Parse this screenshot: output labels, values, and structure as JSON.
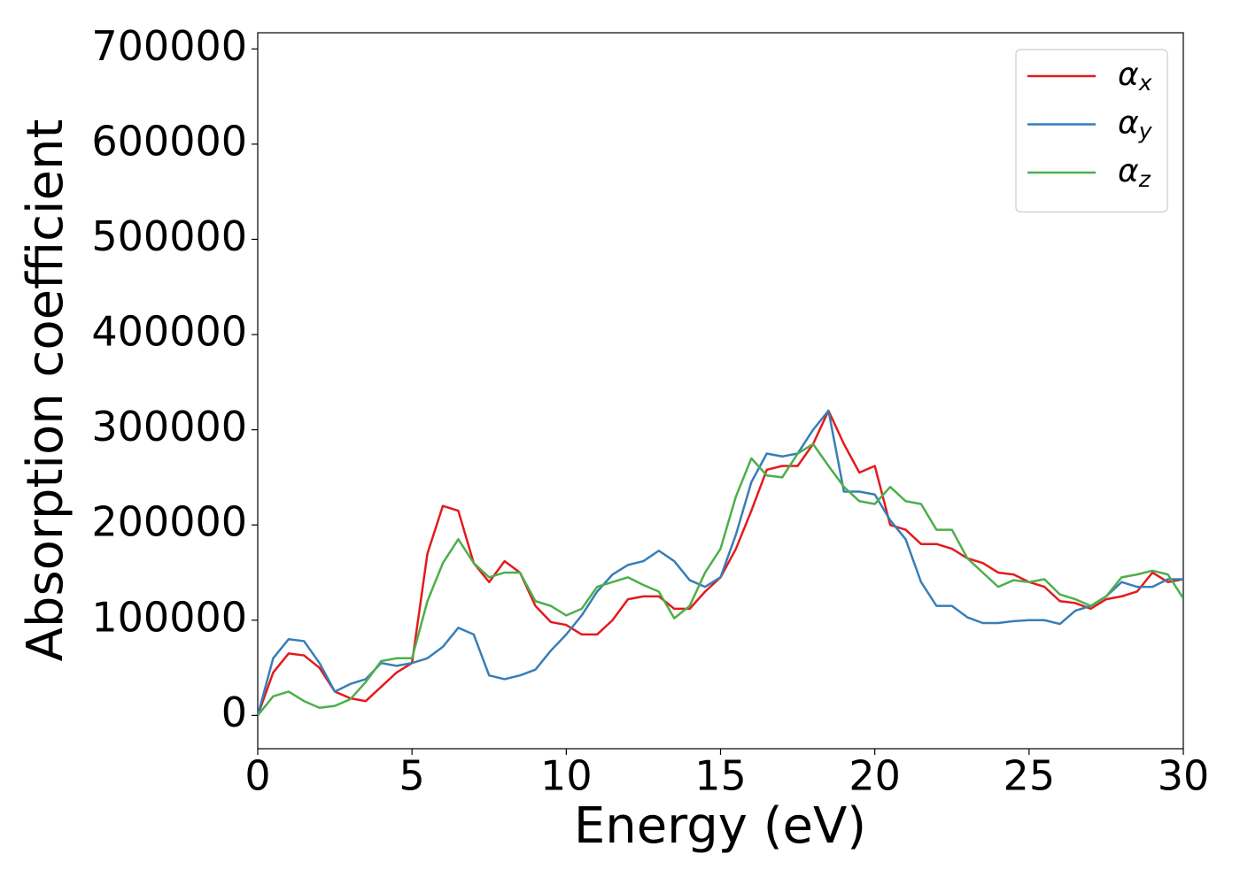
{
  "chart_data": {
    "type": "line",
    "xlabel": "Energy (eV)",
    "ylabel": "Absorption coefficient",
    "x": [
      0,
      0.5,
      1,
      1.5,
      2,
      2.5,
      3,
      3.5,
      4,
      4.5,
      5,
      5.5,
      6,
      6.5,
      7,
      7.5,
      8,
      8.5,
      9,
      9.5,
      10,
      10.5,
      11,
      11.5,
      12,
      12.5,
      13,
      13.5,
      14,
      14.5,
      15,
      15.5,
      16,
      16.5,
      17,
      17.5,
      18,
      18.5,
      19,
      19.5,
      20,
      20.5,
      21,
      21.5,
      22,
      22.5,
      23,
      23.5,
      24,
      24.5,
      25,
      25.5,
      26,
      26.5,
      27,
      27.5,
      28,
      28.5,
      29,
      29.5,
      30
    ],
    "series": [
      {
        "name": "αx",
        "color": "#e41a1c",
        "values": [
          0,
          45000,
          65000,
          63000,
          50000,
          25000,
          18000,
          15000,
          30000,
          45000,
          55000,
          170000,
          220000,
          215000,
          160000,
          140000,
          162000,
          150000,
          115000,
          98000,
          95000,
          85000,
          85000,
          100000,
          122000,
          125000,
          125000,
          112000,
          112000,
          130000,
          145000,
          175000,
          215000,
          258000,
          262000,
          262000,
          285000,
          320000,
          285000,
          255000,
          262000,
          200000,
          195000,
          180000,
          180000,
          175000,
          165000,
          160000,
          150000,
          148000,
          140000,
          135000,
          120000,
          118000,
          112000,
          122000,
          125000,
          130000,
          150000,
          140000,
          143000
        ]
      },
      {
        "name": "αy",
        "color": "#377eb8",
        "values": [
          0,
          60000,
          80000,
          78000,
          55000,
          25000,
          33000,
          38000,
          55000,
          52000,
          55000,
          60000,
          72000,
          92000,
          85000,
          42000,
          38000,
          42000,
          48000,
          68000,
          85000,
          105000,
          130000,
          148000,
          158000,
          162000,
          173000,
          162000,
          142000,
          135000,
          145000,
          190000,
          245000,
          275000,
          272000,
          275000,
          300000,
          320000,
          235000,
          235000,
          232000,
          205000,
          185000,
          140000,
          115000,
          115000,
          103000,
          97000,
          97000,
          99000,
          100000,
          100000,
          96000,
          110000,
          115000,
          125000,
          140000,
          135000,
          135000,
          143000,
          143000
        ]
      },
      {
        "name": "αz",
        "color": "#4daf4a",
        "values": [
          0,
          20000,
          25000,
          15000,
          8000,
          10000,
          17000,
          35000,
          57000,
          60000,
          60000,
          120000,
          160000,
          185000,
          160000,
          145000,
          150000,
          150000,
          120000,
          115000,
          105000,
          112000,
          135000,
          140000,
          145000,
          137000,
          130000,
          102000,
          115000,
          150000,
          175000,
          230000,
          270000,
          252000,
          250000,
          275000,
          285000,
          262000,
          240000,
          225000,
          222000,
          240000,
          225000,
          222000,
          195000,
          195000,
          165000,
          150000,
          135000,
          142000,
          140000,
          143000,
          127000,
          122000,
          115000,
          125000,
          145000,
          148000,
          152000,
          148000,
          123000
        ]
      }
    ],
    "xlim": [
      0,
      30
    ],
    "xticks": [
      0,
      5,
      10,
      15,
      20,
      25,
      30
    ],
    "ylim": [
      -35000,
      717000
    ],
    "yticks": [
      0,
      100000,
      200000,
      300000,
      400000,
      500000,
      600000,
      700000
    ],
    "grid": false,
    "legend": "upper right"
  }
}
